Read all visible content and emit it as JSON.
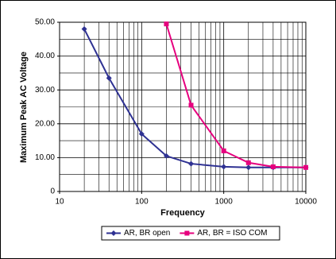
{
  "chart_data": {
    "type": "line",
    "x_label": "Frequency",
    "y_label": "Maximum Peak AC Voltage",
    "xscale": "log",
    "xlim": [
      10,
      10000
    ],
    "xticks": [
      10,
      100,
      1000,
      10000
    ],
    "ylim": [
      0,
      50
    ],
    "yticks": [
      0,
      {
        "value": 10,
        "label": "10.00"
      },
      {
        "value": 20,
        "label": "20.00"
      },
      {
        "value": 30,
        "label": "30.00"
      },
      {
        "value": 40,
        "label": "40.00"
      },
      {
        "value": 50,
        "label": "50.00"
      }
    ],
    "yminorticks": [
      5,
      15,
      25,
      35,
      45
    ],
    "grid": true,
    "legend": "bottom",
    "series": [
      {
        "name": "AR, BR open",
        "color": "#2e3192",
        "marker": "diamond",
        "x": [
          20,
          40,
          100,
          200,
          400,
          1000,
          2000,
          4000,
          10000
        ],
        "values": [
          48,
          33.5,
          17,
          10.5,
          8.2,
          7.3,
          7.1,
          7.1,
          7.1
        ]
      },
      {
        "name": "AR, BR = ISO COM",
        "color": "#e6007e",
        "marker": "square",
        "x": [
          200,
          400,
          1000,
          2000,
          4000,
          10000
        ],
        "values": [
          49.5,
          25.5,
          12,
          8.5,
          7.3,
          7.1
        ]
      }
    ]
  }
}
